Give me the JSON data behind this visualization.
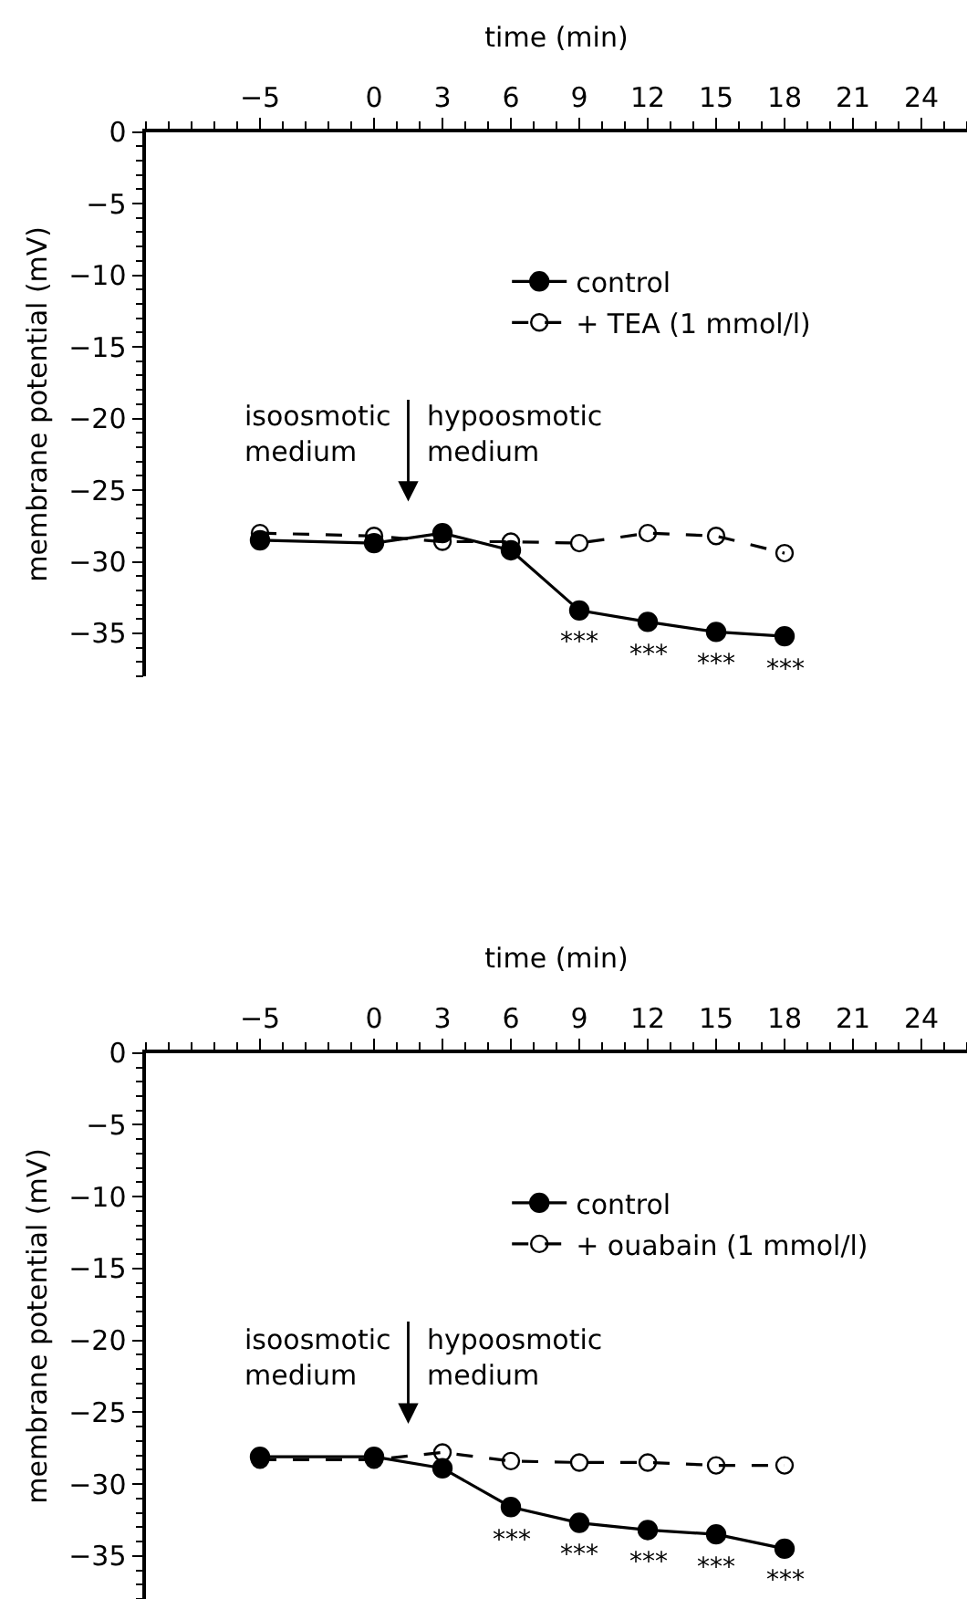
{
  "chart_data": [
    {
      "type": "line",
      "xlabel": "time (min)",
      "ylabel": "membrane potential (mV)",
      "x": [
        -5,
        0,
        3,
        6,
        9,
        12,
        15,
        18
      ],
      "xlim": [
        -10,
        26
      ],
      "xticks": [
        -5,
        0,
        3,
        6,
        9,
        12,
        15,
        18,
        21,
        24
      ],
      "ylim": [
        -38,
        0
      ],
      "yticks": [
        0,
        -5,
        -10,
        -15,
        -20,
        -25,
        -30,
        -35
      ],
      "legend": "top right",
      "marker": "circle",
      "series": [
        {
          "name": "control",
          "color": "#000000",
          "line_style": "solid",
          "values": [
            -28.5,
            -28.7,
            -28.0,
            -29.2,
            -33.4,
            -34.2,
            -34.9,
            -35.2
          ]
        },
        {
          "name": "+ TEA (1 mmol/l)",
          "color": "#000000",
          "line_style": "dashed",
          "values": [
            -28.0,
            -28.2,
            -28.6,
            -28.6,
            -28.7,
            -28.0,
            -28.2,
            -29.4
          ]
        }
      ],
      "annotations": [
        "isoosmotic\nmedium",
        "hypoosmotic\nmedium",
        {
          "text": "***",
          "x": 9,
          "y": -33.4
        },
        {
          "text": "***",
          "x": 12,
          "y": -34.2
        },
        {
          "text": "***",
          "x": 15,
          "y": -34.9
        },
        {
          "text": "***",
          "x": 18,
          "y": -35.2
        }
      ]
    },
    {
      "type": "line",
      "xlabel": "time (min)",
      "ylabel": "membrane potential (mV)",
      "x": [
        -5,
        0,
        3,
        6,
        9,
        12,
        15,
        18
      ],
      "xlim": [
        -10,
        26
      ],
      "xticks": [
        -5,
        0,
        3,
        6,
        9,
        12,
        15,
        18,
        21,
        24
      ],
      "ylim": [
        -38,
        0
      ],
      "yticks": [
        0,
        -5,
        -10,
        -15,
        -20,
        -25,
        -30,
        -35
      ],
      "legend": "top right",
      "marker": "circle",
      "series": [
        {
          "name": "control",
          "color": "#000000",
          "line_style": "solid",
          "values": [
            -28.1,
            -28.1,
            -28.9,
            -31.6,
            -32.7,
            -33.2,
            -33.5,
            -34.5
          ]
        },
        {
          "name": "+ ouabain (1 mmol/l)",
          "color": "#000000",
          "line_style": "dashed",
          "values": [
            -28.3,
            -28.3,
            -27.8,
            -28.4,
            -28.5,
            -28.5,
            -28.7,
            -28.7
          ]
        }
      ],
      "annotations": [
        "isoosmotic\nmedium",
        "hypoosmotic\nmedium",
        {
          "text": "***",
          "x": 6,
          "y": -31.6
        },
        {
          "text": "***",
          "x": 9,
          "y": -32.7
        },
        {
          "text": "***",
          "x": 12,
          "y": -33.2
        },
        {
          "text": "***",
          "x": 15,
          "y": -33.5
        },
        {
          "text": "***",
          "x": 18,
          "y": -34.5
        }
      ]
    }
  ]
}
